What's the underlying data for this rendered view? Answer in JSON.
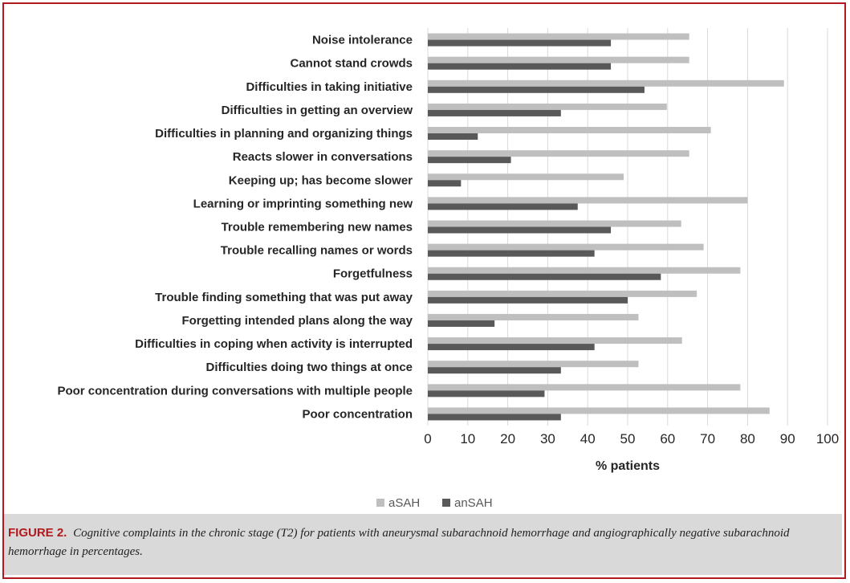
{
  "chart_data": {
    "type": "bar",
    "orientation": "horizontal",
    "categories": [
      "Noise intolerance",
      "Cannot stand crowds",
      "Difficulties in taking initiative",
      "Difficulties in getting an overview",
      "Difficulties in planning and organizing things",
      "Reacts slower in conversations",
      "Keeping up; has become slower",
      "Learning or imprinting something new",
      "Trouble remembering new names",
      "Trouble recalling names or words",
      "Forgetfulness",
      "Trouble finding something that was put away",
      "Forgetting intended plans along the way",
      "Difficulties in coping when activity is interrupted",
      "Difficulties doing two things at once",
      "Poor concentration during conversations with multiple people",
      "Poor concentration"
    ],
    "series": [
      {
        "name": "aSAH",
        "color": "#bfbfbf",
        "values": [
          65.4,
          65.4,
          89.1,
          59.8,
          70.8,
          65.4,
          49.0,
          80.0,
          63.4,
          69.0,
          78.2,
          67.3,
          52.7,
          63.6,
          52.7,
          78.2,
          85.5
        ]
      },
      {
        "name": "anSAH",
        "color": "#595959",
        "values": [
          45.8,
          45.8,
          54.2,
          33.3,
          12.5,
          20.8,
          8.3,
          37.5,
          45.8,
          41.7,
          58.3,
          50.0,
          16.7,
          41.7,
          33.3,
          29.2,
          33.3
        ]
      }
    ],
    "xlim": [
      0,
      100
    ],
    "xticks": [
      "0",
      "10",
      "20",
      "30",
      "40",
      "50",
      "60",
      "70",
      "80",
      "90",
      "100"
    ],
    "xlabel": "% patients",
    "grid": true,
    "legend_position": "bottom"
  },
  "caption": {
    "label": "FIGURE 2.",
    "text": "Cognitive complaints in the chronic stage (T2) for patients with aneurysmal subarachnoid hemorrhage and angiographically negative subarachnoid hemorrhage in percentages."
  }
}
